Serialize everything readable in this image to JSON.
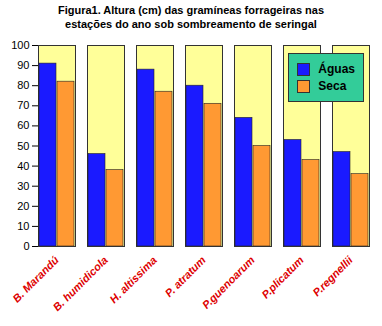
{
  "chart_data": {
    "type": "bar",
    "title": "Figura1. Altura (cm) das gramíneas forrageiras nas estações do ano sob sombreamento de seringal",
    "categories": [
      "B. Marandú",
      "B. humidicola",
      "H. altissima",
      "P. atratum",
      "P.guenoarum",
      "P.plicatum",
      "P.regnellii"
    ],
    "series": [
      {
        "name": "Águas",
        "color": "#1a1aff",
        "values": [
          91,
          46,
          88,
          80,
          64,
          53,
          47
        ]
      },
      {
        "name": "Seca",
        "color": "#ff9933",
        "values": [
          82,
          38,
          77,
          71,
          50,
          43,
          36
        ]
      }
    ],
    "ylim": [
      0,
      100
    ],
    "yticks": [
      0,
      10,
      20,
      30,
      40,
      50,
      60,
      70,
      80,
      90,
      100
    ],
    "grid": false,
    "legend": "top-right"
  }
}
